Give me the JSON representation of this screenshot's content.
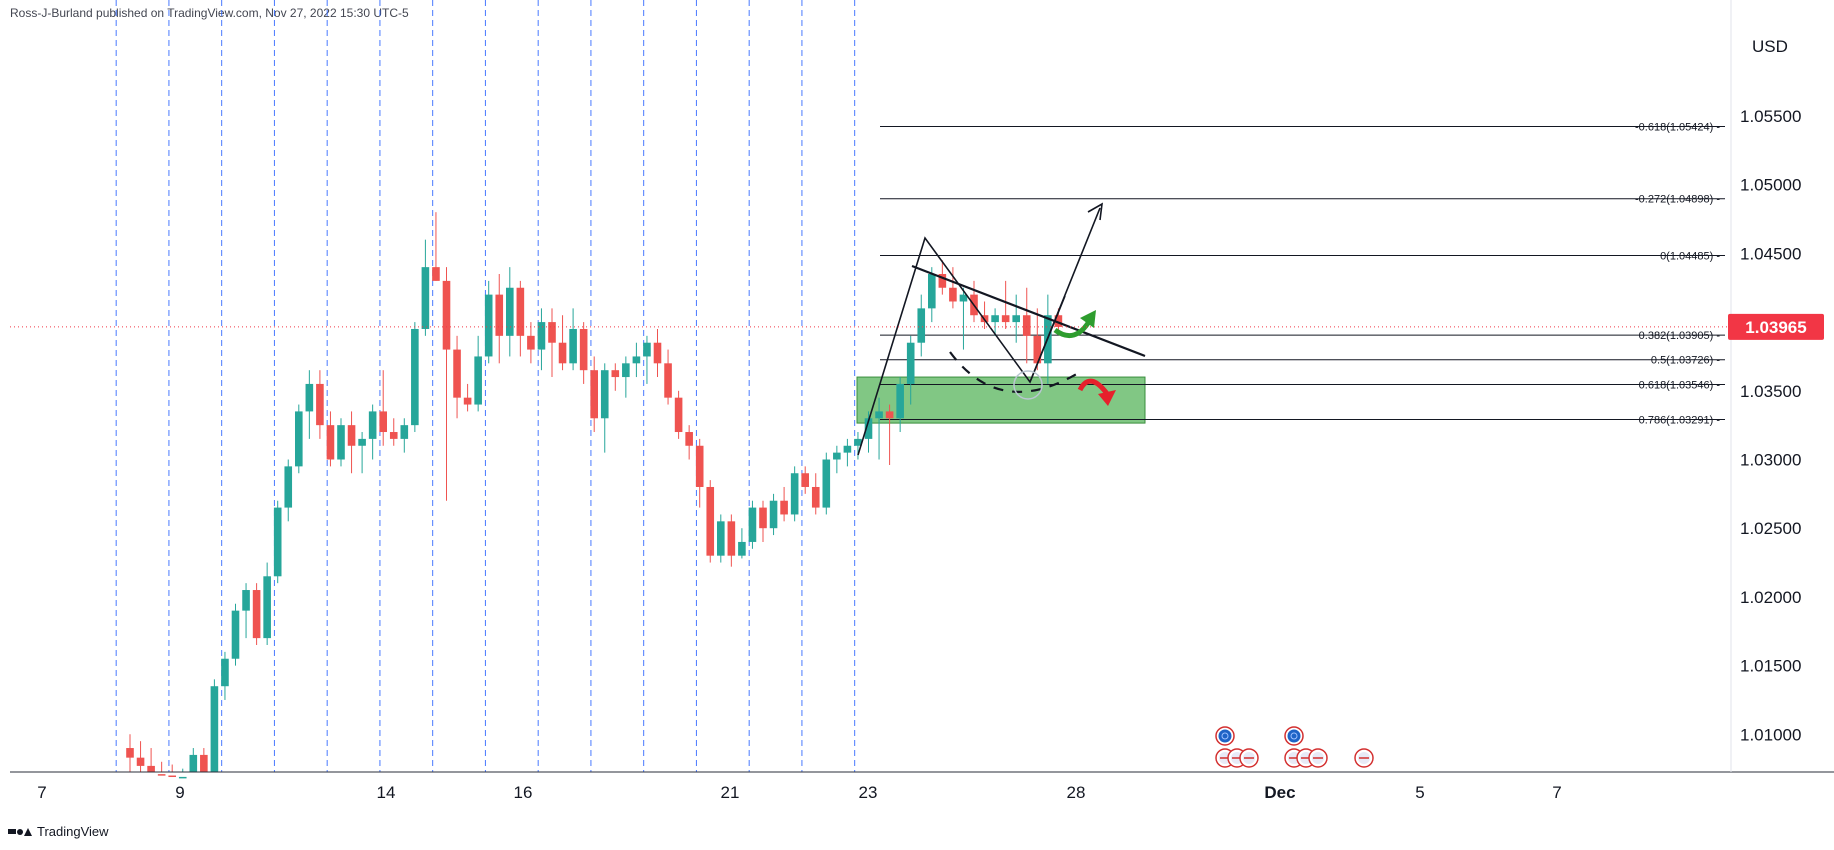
{
  "attribution": "Ross-J-Burland published on TradingView.com, Nov 27, 2022 15:30 UTC-5",
  "footer_brand": "TradingView",
  "currency": "USD",
  "last_price_label": "1.03965",
  "colors": {
    "bull": "#26a69a",
    "bear": "#ef5350",
    "grid_dash": "#2962ff",
    "price_badge": "#f23645",
    "zone_fill": "#4caf50",
    "green_arrow": "#2e9d2e",
    "red_arrow": "#e6202c"
  },
  "chart_data": {
    "type": "candlestick",
    "title": "",
    "xlabel": "",
    "ylabel": "",
    "ylim": [
      1.0067,
      1.0587
    ],
    "x_ticks": [
      "7",
      "9",
      "14",
      "16",
      "21",
      "23",
      "28",
      "Dec",
      "5",
      "7"
    ],
    "y_ticks": [
      "1.05500",
      "1.05000",
      "1.04500",
      "1.04000",
      "1.03500",
      "1.03000",
      "1.02500",
      "1.02000",
      "1.01500",
      "1.01000"
    ],
    "y_tick_values": [
      1.055,
      1.05,
      1.045,
      1.04,
      1.035,
      1.03,
      1.025,
      1.02,
      1.015,
      1.01
    ],
    "last_price": 1.03965,
    "session_lines_index": [
      -2,
      3,
      8,
      13,
      18,
      23,
      28,
      33,
      38,
      43,
      48,
      53,
      58,
      63,
      68
    ],
    "candles": [
      {
        "o": 1.009,
        "h": 1.01,
        "l": 1.0067,
        "c": 1.0083
      },
      {
        "o": 1.0083,
        "h": 1.0095,
        "l": 1.0067,
        "c": 1.0077
      },
      {
        "o": 1.0077,
        "h": 1.009,
        "l": 1.0067,
        "c": 1.0071
      },
      {
        "o": 1.0071,
        "h": 1.008,
        "l": 1.0067,
        "c": 1.007
      },
      {
        "o": 1.007,
        "h": 1.0078,
        "l": 1.0067,
        "c": 1.0068
      },
      {
        "o": 1.0068,
        "h": 1.0075,
        "l": 1.0067,
        "c": 1.0069
      },
      {
        "o": 1.0069,
        "h": 1.009,
        "l": 1.0067,
        "c": 1.0085
      },
      {
        "o": 1.0085,
        "h": 1.009,
        "l": 1.0067,
        "c": 1.0071
      },
      {
        "o": 1.0067,
        "h": 1.014,
        "l": 1.0067,
        "c": 1.0135
      },
      {
        "o": 1.0135,
        "h": 1.016,
        "l": 1.0125,
        "c": 1.0155
      },
      {
        "o": 1.0155,
        "h": 1.0195,
        "l": 1.015,
        "c": 1.019
      },
      {
        "o": 1.019,
        "h": 1.021,
        "l": 1.017,
        "c": 1.0205
      },
      {
        "o": 1.0205,
        "h": 1.021,
        "l": 1.0165,
        "c": 1.017
      },
      {
        "o": 1.017,
        "h": 1.0225,
        "l": 1.0165,
        "c": 1.0215
      },
      {
        "o": 1.0215,
        "h": 1.027,
        "l": 1.021,
        "c": 1.0265
      },
      {
        "o": 1.0265,
        "h": 1.03,
        "l": 1.0255,
        "c": 1.0295
      },
      {
        "o": 1.0295,
        "h": 1.034,
        "l": 1.029,
        "c": 1.0335
      },
      {
        "o": 1.0335,
        "h": 1.0365,
        "l": 1.0315,
        "c": 1.0355
      },
      {
        "o": 1.0355,
        "h": 1.0365,
        "l": 1.0315,
        "c": 1.0325
      },
      {
        "o": 1.0325,
        "h": 1.0335,
        "l": 1.0295,
        "c": 1.03
      },
      {
        "o": 1.03,
        "h": 1.033,
        "l": 1.0295,
        "c": 1.0325
      },
      {
        "o": 1.0325,
        "h": 1.0335,
        "l": 1.029,
        "c": 1.031
      },
      {
        "o": 1.031,
        "h": 1.032,
        "l": 1.029,
        "c": 1.0315
      },
      {
        "o": 1.0315,
        "h": 1.034,
        "l": 1.03,
        "c": 1.0335
      },
      {
        "o": 1.0335,
        "h": 1.0365,
        "l": 1.031,
        "c": 1.032
      },
      {
        "o": 1.032,
        "h": 1.033,
        "l": 1.031,
        "c": 1.0315
      },
      {
        "o": 1.0315,
        "h": 1.033,
        "l": 1.0305,
        "c": 1.0325
      },
      {
        "o": 1.0325,
        "h": 1.04,
        "l": 1.032,
        "c": 1.0395
      },
      {
        "o": 1.0395,
        "h": 1.046,
        "l": 1.039,
        "c": 1.044
      },
      {
        "o": 1.044,
        "h": 1.048,
        "l": 1.043,
        "c": 1.043
      },
      {
        "o": 1.043,
        "h": 1.044,
        "l": 1.027,
        "c": 1.038
      },
      {
        "o": 1.038,
        "h": 1.039,
        "l": 1.033,
        "c": 1.0345
      },
      {
        "o": 1.0345,
        "h": 1.0355,
        "l": 1.0335,
        "c": 1.034
      },
      {
        "o": 1.034,
        "h": 1.039,
        "l": 1.0335,
        "c": 1.0375
      },
      {
        "o": 1.0375,
        "h": 1.043,
        "l": 1.037,
        "c": 1.042
      },
      {
        "o": 1.042,
        "h": 1.0435,
        "l": 1.037,
        "c": 1.039
      },
      {
        "o": 1.039,
        "h": 1.044,
        "l": 1.0375,
        "c": 1.0425
      },
      {
        "o": 1.0425,
        "h": 1.043,
        "l": 1.0375,
        "c": 1.039
      },
      {
        "o": 1.039,
        "h": 1.04,
        "l": 1.037,
        "c": 1.038
      },
      {
        "o": 1.038,
        "h": 1.041,
        "l": 1.0365,
        "c": 1.04
      },
      {
        "o": 1.04,
        "h": 1.041,
        "l": 1.036,
        "c": 1.0385
      },
      {
        "o": 1.0385,
        "h": 1.0405,
        "l": 1.0365,
        "c": 1.037
      },
      {
        "o": 1.037,
        "h": 1.041,
        "l": 1.0365,
        "c": 1.0395
      },
      {
        "o": 1.0395,
        "h": 1.04,
        "l": 1.0355,
        "c": 1.0365
      },
      {
        "o": 1.0365,
        "h": 1.0375,
        "l": 1.032,
        "c": 1.033
      },
      {
        "o": 1.033,
        "h": 1.037,
        "l": 1.0305,
        "c": 1.0365
      },
      {
        "o": 1.0365,
        "h": 1.037,
        "l": 1.035,
        "c": 1.036
      },
      {
        "o": 1.036,
        "h": 1.0375,
        "l": 1.0345,
        "c": 1.037
      },
      {
        "o": 1.037,
        "h": 1.0385,
        "l": 1.036,
        "c": 1.0375
      },
      {
        "o": 1.0375,
        "h": 1.039,
        "l": 1.0355,
        "c": 1.0385
      },
      {
        "o": 1.0385,
        "h": 1.0395,
        "l": 1.036,
        "c": 1.037
      },
      {
        "o": 1.037,
        "h": 1.038,
        "l": 1.034,
        "c": 1.0345
      },
      {
        "o": 1.0345,
        "h": 1.035,
        "l": 1.0315,
        "c": 1.032
      },
      {
        "o": 1.032,
        "h": 1.0325,
        "l": 1.03,
        "c": 1.031
      },
      {
        "o": 1.031,
        "h": 1.0315,
        "l": 1.0265,
        "c": 1.028
      },
      {
        "o": 1.028,
        "h": 1.0285,
        "l": 1.0225,
        "c": 1.023
      },
      {
        "o": 1.023,
        "h": 1.026,
        "l": 1.0225,
        "c": 1.0255
      },
      {
        "o": 1.0255,
        "h": 1.026,
        "l": 1.0222,
        "c": 1.023
      },
      {
        "o": 1.023,
        "h": 1.025,
        "l": 1.0228,
        "c": 1.024
      },
      {
        "o": 1.024,
        "h": 1.027,
        "l": 1.0235,
        "c": 1.0265
      },
      {
        "o": 1.0265,
        "h": 1.027,
        "l": 1.024,
        "c": 1.025
      },
      {
        "o": 1.025,
        "h": 1.0275,
        "l": 1.0245,
        "c": 1.027
      },
      {
        "o": 1.027,
        "h": 1.028,
        "l": 1.0255,
        "c": 1.026
      },
      {
        "o": 1.026,
        "h": 1.0295,
        "l": 1.0255,
        "c": 1.029
      },
      {
        "o": 1.029,
        "h": 1.0295,
        "l": 1.0275,
        "c": 1.028
      },
      {
        "o": 1.028,
        "h": 1.029,
        "l": 1.026,
        "c": 1.0265
      },
      {
        "o": 1.0265,
        "h": 1.0305,
        "l": 1.026,
        "c": 1.03
      },
      {
        "o": 1.03,
        "h": 1.031,
        "l": 1.029,
        "c": 1.0305
      },
      {
        "o": 1.0305,
        "h": 1.0315,
        "l": 1.0295,
        "c": 1.031
      },
      {
        "o": 1.031,
        "h": 1.032,
        "l": 1.03,
        "c": 1.0315
      },
      {
        "o": 1.0315,
        "h": 1.0335,
        "l": 1.0305,
        "c": 1.033
      },
      {
        "o": 1.033,
        "h": 1.0345,
        "l": 1.03,
        "c": 1.0335
      },
      {
        "o": 1.0335,
        "h": 1.034,
        "l": 1.0296,
        "c": 1.033
      },
      {
        "o": 1.033,
        "h": 1.036,
        "l": 1.032,
        "c": 1.0355
      },
      {
        "o": 1.0355,
        "h": 1.039,
        "l": 1.034,
        "c": 1.0385
      },
      {
        "o": 1.0385,
        "h": 1.042,
        "l": 1.0375,
        "c": 1.041
      },
      {
        "o": 1.041,
        "h": 1.044,
        "l": 1.04,
        "c": 1.0435
      },
      {
        "o": 1.0435,
        "h": 1.0445,
        "l": 1.042,
        "c": 1.0425
      },
      {
        "o": 1.0425,
        "h": 1.044,
        "l": 1.041,
        "c": 1.0415
      },
      {
        "o": 1.0415,
        "h": 1.0425,
        "l": 1.038,
        "c": 1.042
      },
      {
        "o": 1.042,
        "h": 1.043,
        "l": 1.04,
        "c": 1.0405
      },
      {
        "o": 1.0405,
        "h": 1.0415,
        "l": 1.0395,
        "c": 1.04
      },
      {
        "o": 1.04,
        "h": 1.041,
        "l": 1.039,
        "c": 1.0405
      },
      {
        "o": 1.0405,
        "h": 1.043,
        "l": 1.0395,
        "c": 1.04
      },
      {
        "o": 1.04,
        "h": 1.042,
        "l": 1.0385,
        "c": 1.0405
      },
      {
        "o": 1.0405,
        "h": 1.0425,
        "l": 1.037,
        "c": 1.039
      },
      {
        "o": 1.039,
        "h": 1.041,
        "l": 1.0365,
        "c": 1.037
      },
      {
        "o": 1.037,
        "h": 1.042,
        "l": 1.0355,
        "c": 1.0405
      },
      {
        "o": 1.0405,
        "h": 1.041,
        "l": 1.0392,
        "c": 1.03965
      }
    ],
    "fib_levels": [
      {
        "label": "-0.618(1.05424)",
        "value": 1.05424
      },
      {
        "label": "-0.272(1.04898)",
        "value": 1.04898
      },
      {
        "label": "0(1.04485)",
        "value": 1.04485
      },
      {
        "label": "0.382(1.03905)",
        "value": 1.03905
      },
      {
        "label": "0.5(1.03726)",
        "value": 1.03726
      },
      {
        "label": "0.618(1.03546)",
        "value": 1.03546
      },
      {
        "label": "0.786(1.03291)",
        "value": 1.03291
      }
    ],
    "demand_zone": {
      "top": 1.036,
      "bottom": 1.03265
    }
  }
}
